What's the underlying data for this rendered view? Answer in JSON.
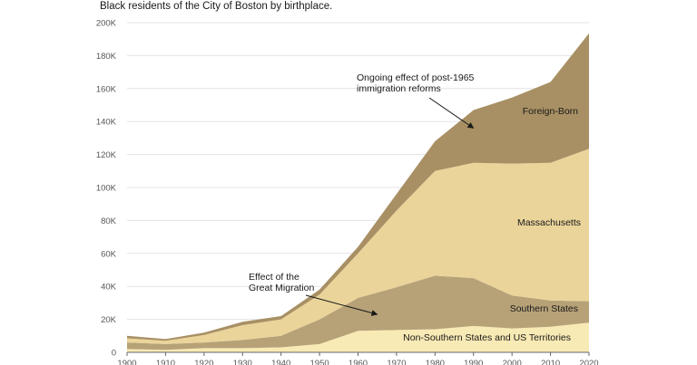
{
  "chart_data": {
    "type": "area",
    "subtitle": "Black residents of the City of Boston by birthplace.",
    "x": [
      1900,
      1910,
      1920,
      1930,
      1940,
      1950,
      1960,
      1970,
      1980,
      1990,
      2000,
      2010,
      2020
    ],
    "ylim": [
      0,
      200000
    ],
    "yticks": [
      0,
      20000,
      40000,
      60000,
      80000,
      100000,
      120000,
      140000,
      160000,
      180000,
      200000
    ],
    "ytick_labels": [
      "0",
      "20K",
      "40K",
      "60K",
      "80K",
      "100K",
      "120K",
      "140K",
      "160K",
      "180K",
      "200K"
    ],
    "xtick_labels": [
      "1900",
      "1910",
      "1920",
      "1930",
      "1940",
      "1950",
      "1960",
      "1970",
      "1980",
      "1990",
      "2000",
      "2010",
      "2020"
    ],
    "grid": true,
    "series": [
      {
        "name": "Non-Southern States and US Territories",
        "color": "#f8eab4",
        "values": [
          2000,
          1500,
          2500,
          2500,
          3000,
          5000,
          13000,
          13500,
          14000,
          16000,
          14500,
          15500,
          18000
        ]
      },
      {
        "name": "Southern States",
        "color": "#b7a278",
        "values": [
          4000,
          3500,
          3500,
          5000,
          7000,
          15000,
          20000,
          26000,
          32500,
          29000,
          20000,
          16000,
          13000
        ]
      },
      {
        "name": "Massachusetts",
        "color": "#ead49a",
        "values": [
          2500,
          2000,
          4500,
          9000,
          10000,
          15000,
          27000,
          46500,
          63500,
          70000,
          80000,
          83500,
          92500
        ]
      },
      {
        "name": "Foreign-Born",
        "color": "#a89064",
        "values": [
          1500,
          1000,
          1500,
          2000,
          2000,
          3000,
          4000,
          10000,
          18000,
          32000,
          40000,
          49000,
          70000
        ]
      }
    ],
    "annotations": [
      {
        "text_lines": [
          "Ongoing effect of post-1965",
          "immigration reforms"
        ],
        "target_x": 1990,
        "target_y": 136000
      },
      {
        "text_lines": [
          "Effect of the",
          "Great Migration"
        ],
        "target_x": 1965,
        "target_y": 23000
      }
    ]
  }
}
